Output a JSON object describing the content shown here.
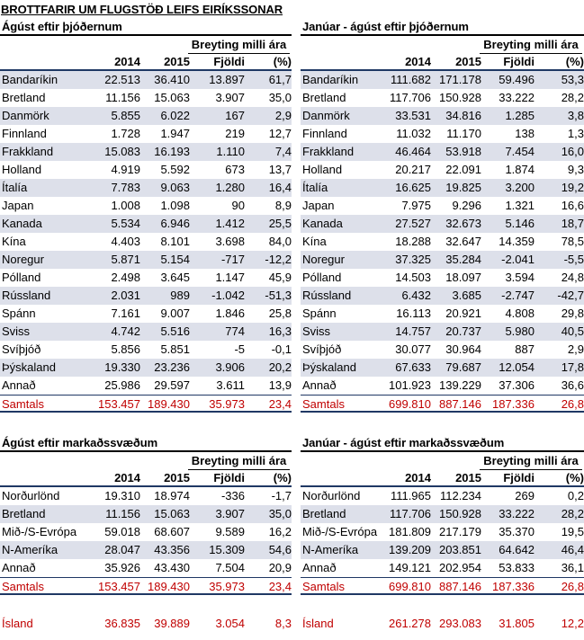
{
  "title": "BROTTFARIR UM FLUGSTÖÐ LEIFS EIRÍKSSONAR",
  "column_headers": {
    "change_group": "Breyting milli ára",
    "year1": "2014",
    "year2": "2015",
    "count": "Fjöldi",
    "pct": "(%)"
  },
  "nationality_august": {
    "title": "Ágúst eftir þjóðernum",
    "rows": [
      [
        "Bandaríkin",
        "22.513",
        "36.410",
        "13.897",
        "61,7"
      ],
      [
        "Bretland",
        "11.156",
        "15.063",
        "3.907",
        "35,0"
      ],
      [
        "Danmörk",
        "5.855",
        "6.022",
        "167",
        "2,9"
      ],
      [
        "Finnland",
        "1.728",
        "1.947",
        "219",
        "12,7"
      ],
      [
        "Frakkland",
        "15.083",
        "16.193",
        "1.110",
        "7,4"
      ],
      [
        "Holland",
        "4.919",
        "5.592",
        "673",
        "13,7"
      ],
      [
        "Ítalía",
        "7.783",
        "9.063",
        "1.280",
        "16,4"
      ],
      [
        "Japan",
        "1.008",
        "1.098",
        "90",
        "8,9"
      ],
      [
        "Kanada",
        "5.534",
        "6.946",
        "1.412",
        "25,5"
      ],
      [
        "Kína",
        "4.403",
        "8.101",
        "3.698",
        "84,0"
      ],
      [
        "Noregur",
        "5.871",
        "5.154",
        "-717",
        "-12,2"
      ],
      [
        "Pólland",
        "2.498",
        "3.645",
        "1.147",
        "45,9"
      ],
      [
        "Rússland",
        "2.031",
        "989",
        "-1.042",
        "-51,3"
      ],
      [
        "Spánn",
        "7.161",
        "9.007",
        "1.846",
        "25,8"
      ],
      [
        "Sviss",
        "4.742",
        "5.516",
        "774",
        "16,3"
      ],
      [
        "Svíþjóð",
        "5.856",
        "5.851",
        "-5",
        "-0,1"
      ],
      [
        "Þýskaland",
        "19.330",
        "23.236",
        "3.906",
        "20,2"
      ],
      [
        "Annað",
        "25.986",
        "29.597",
        "3.611",
        "13,9"
      ]
    ],
    "total": [
      "Samtals",
      "153.457",
      "189.430",
      "35.973",
      "23,4"
    ]
  },
  "nationality_jan_aug": {
    "title": "Janúar - ágúst eftir þjóðernum",
    "rows": [
      [
        "Bandaríkin",
        "111.682",
        "171.178",
        "59.496",
        "53,3"
      ],
      [
        "Bretland",
        "117.706",
        "150.928",
        "33.222",
        "28,2"
      ],
      [
        "Danmörk",
        "33.531",
        "34.816",
        "1.285",
        "3,8"
      ],
      [
        "Finnland",
        "11.032",
        "11.170",
        "138",
        "1,3"
      ],
      [
        "Frakkland",
        "46.464",
        "53.918",
        "7.454",
        "16,0"
      ],
      [
        "Holland",
        "20.217",
        "22.091",
        "1.874",
        "9,3"
      ],
      [
        "Ítalía",
        "16.625",
        "19.825",
        "3.200",
        "19,2"
      ],
      [
        "Japan",
        "7.975",
        "9.296",
        "1.321",
        "16,6"
      ],
      [
        "Kanada",
        "27.527",
        "32.673",
        "5.146",
        "18,7"
      ],
      [
        "Kína",
        "18.288",
        "32.647",
        "14.359",
        "78,5"
      ],
      [
        "Noregur",
        "37.325",
        "35.284",
        "-2.041",
        "-5,5"
      ],
      [
        "Pólland",
        "14.503",
        "18.097",
        "3.594",
        "24,8"
      ],
      [
        "Rússland",
        "6.432",
        "3.685",
        "-2.747",
        "-42,7"
      ],
      [
        "Spánn",
        "16.113",
        "20.921",
        "4.808",
        "29,8"
      ],
      [
        "Sviss",
        "14.757",
        "20.737",
        "5.980",
        "40,5"
      ],
      [
        "Svíþjóð",
        "30.077",
        "30.964",
        "887",
        "2,9"
      ],
      [
        "Þýskaland",
        "67.633",
        "79.687",
        "12.054",
        "17,8"
      ],
      [
        "Annað",
        "101.923",
        "139.229",
        "37.306",
        "36,6"
      ]
    ],
    "total": [
      "Samtals",
      "699.810",
      "887.146",
      "187.336",
      "26,8"
    ]
  },
  "market_august": {
    "title": "Ágúst eftir markaðssvæðum",
    "rows": [
      [
        "Norðurlönd",
        "19.310",
        "18.974",
        "-336",
        "-1,7"
      ],
      [
        "Bretland",
        "11.156",
        "15.063",
        "3.907",
        "35,0"
      ],
      [
        "Mið-/S-Evrópa",
        "59.018",
        "68.607",
        "9.589",
        "16,2"
      ],
      [
        "N-Ameríka",
        "28.047",
        "43.356",
        "15.309",
        "54,6"
      ],
      [
        "Annað",
        "35.926",
        "43.430",
        "7.504",
        "20,9"
      ]
    ],
    "total": [
      "Samtals",
      "153.457",
      "189.430",
      "35.973",
      "23,4"
    ],
    "island": [
      "Ísland",
      "36.835",
      "39.889",
      "3.054",
      "8,3"
    ]
  },
  "market_jan_aug": {
    "title": "Janúar - ágúst eftir markaðssvæðum",
    "rows": [
      [
        "Norðurlönd",
        "111.965",
        "112.234",
        "269",
        "0,2"
      ],
      [
        "Bretland",
        "117.706",
        "150.928",
        "33.222",
        "28,2"
      ],
      [
        "Mið-/S-Evrópa",
        "181.809",
        "217.179",
        "35.370",
        "19,5"
      ],
      [
        "N-Ameríka",
        "139.209",
        "203.851",
        "64.642",
        "46,4"
      ],
      [
        "Annað",
        "149.121",
        "202.954",
        "53.833",
        "36,1"
      ]
    ],
    "total": [
      "Samtals",
      "699.810",
      "887.146",
      "187.336",
      "26,8"
    ],
    "island": [
      "Ísland",
      "261.278",
      "293.083",
      "31.805",
      "12,2"
    ]
  }
}
